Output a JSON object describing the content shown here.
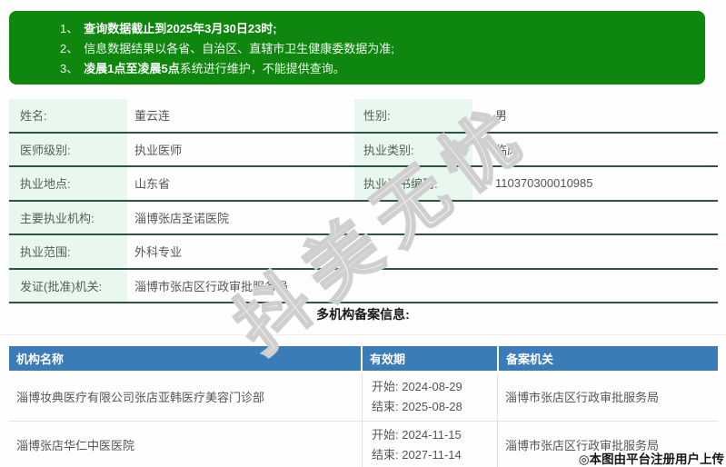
{
  "banner": {
    "bg_color": "#0f870f",
    "notices": [
      {
        "num": "1、",
        "pre": "",
        "strong": "查询数据截止到2025年3月30日23时;",
        "post": ""
      },
      {
        "num": "2、",
        "pre": "信息数据结果以各省、自治区、直辖市卫生健康委数据为准;",
        "strong": "",
        "post": ""
      },
      {
        "num": "3、",
        "pre": "",
        "strong": "凌晨1点至凌晨5点",
        "post": "系统进行维护，不能提供查询。"
      }
    ]
  },
  "info": {
    "label_bg_color": "#e9f8ef",
    "border_color": "#2e5148",
    "rows": [
      {
        "label": "姓名:",
        "value": "董云连",
        "label2": "性别:",
        "value2": "男"
      },
      {
        "label": "医师级别:",
        "value": "执业医师",
        "label2": "执业类别:",
        "value2": "临床"
      },
      {
        "label": "执业地点:",
        "value": "山东省",
        "label2": "执业证书编码:",
        "value2": "110370300010985"
      },
      {
        "label": "主要执业机构:",
        "value": "淄博张店圣诺医院"
      },
      {
        "label": "执业范围:",
        "value": "外科专业"
      },
      {
        "label": "发证(批准)机关:",
        "value": "淄博市张店区行政审批服务局"
      }
    ]
  },
  "section_title": "多机构备案信息:",
  "org_table": {
    "header_bg_color": "#3a7cb8",
    "headers": [
      "机构名称",
      "有效期",
      "备案机关"
    ],
    "rows": [
      {
        "name": "淄博妆典医疗有限公司张店亚韩医疗美容门诊部",
        "start": "开始: 2024-08-29",
        "end": "结束: 2025-08-28",
        "authority": "淄博市张店区行政审批服务局"
      },
      {
        "name": "淄博张店华仁中医医院",
        "start": "开始: 2024-11-15",
        "end": "结束: 2027-11-14",
        "authority": "淄博市张店区行政审批服务局"
      }
    ]
  },
  "watermark": "抖美无忧",
  "credit": "◎本图由平台注册用户上传"
}
